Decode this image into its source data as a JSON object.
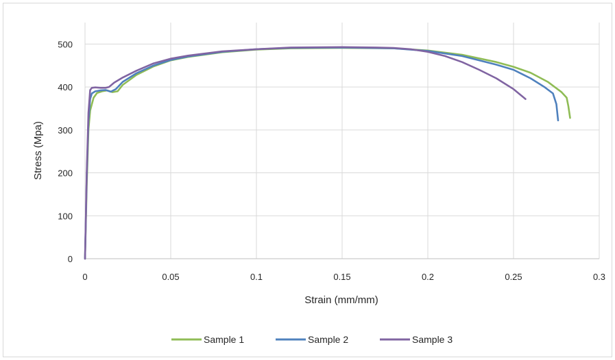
{
  "chart_data": {
    "type": "line",
    "title": "",
    "xlabel": "Strain (mm/mm)",
    "ylabel": "Stress (Mpa)",
    "xlim": [
      0,
      0.3
    ],
    "ylim": [
      0,
      550
    ],
    "x_ticks": [
      "0",
      "0.05",
      "0.1",
      "0.15",
      "0.2",
      "0.25",
      "0.3"
    ],
    "y_ticks": [
      "0",
      "100",
      "200",
      "300",
      "400",
      "500"
    ],
    "grid": "both",
    "legend_position": "bottom",
    "series": [
      {
        "name": "Sample 1",
        "color": "#8fbc55",
        "points": [
          [
            0,
            0
          ],
          [
            0.001,
            170
          ],
          [
            0.002,
            300
          ],
          [
            0.003,
            345
          ],
          [
            0.005,
            375
          ],
          [
            0.007,
            386
          ],
          [
            0.01,
            390
          ],
          [
            0.013,
            392
          ],
          [
            0.016,
            388
          ],
          [
            0.019,
            390
          ],
          [
            0.022,
            405
          ],
          [
            0.03,
            428
          ],
          [
            0.04,
            448
          ],
          [
            0.05,
            462
          ],
          [
            0.06,
            470
          ],
          [
            0.08,
            481
          ],
          [
            0.1,
            487
          ],
          [
            0.12,
            490
          ],
          [
            0.15,
            491
          ],
          [
            0.18,
            490
          ],
          [
            0.2,
            485
          ],
          [
            0.22,
            475
          ],
          [
            0.24,
            458
          ],
          [
            0.25,
            447
          ],
          [
            0.26,
            433
          ],
          [
            0.27,
            412
          ],
          [
            0.278,
            388
          ],
          [
            0.281,
            375
          ],
          [
            0.282,
            355
          ],
          [
            0.283,
            328
          ]
        ]
      },
      {
        "name": "Sample 2",
        "color": "#4f81bd",
        "points": [
          [
            0,
            0
          ],
          [
            0.001,
            190
          ],
          [
            0.002,
            320
          ],
          [
            0.003,
            372
          ],
          [
            0.004,
            385
          ],
          [
            0.006,
            390
          ],
          [
            0.009,
            392
          ],
          [
            0.012,
            393
          ],
          [
            0.015,
            389
          ],
          [
            0.018,
            395
          ],
          [
            0.022,
            412
          ],
          [
            0.03,
            432
          ],
          [
            0.04,
            450
          ],
          [
            0.05,
            463
          ],
          [
            0.06,
            471
          ],
          [
            0.08,
            482
          ],
          [
            0.1,
            488
          ],
          [
            0.12,
            491
          ],
          [
            0.15,
            492
          ],
          [
            0.18,
            490
          ],
          [
            0.2,
            484
          ],
          [
            0.22,
            472
          ],
          [
            0.24,
            452
          ],
          [
            0.25,
            440
          ],
          [
            0.26,
            420
          ],
          [
            0.268,
            400
          ],
          [
            0.273,
            385
          ],
          [
            0.275,
            360
          ],
          [
            0.276,
            322
          ]
        ]
      },
      {
        "name": "Sample 3",
        "color": "#8064a2",
        "points": [
          [
            0,
            0
          ],
          [
            0.001,
            200
          ],
          [
            0.002,
            340
          ],
          [
            0.003,
            393
          ],
          [
            0.004,
            398
          ],
          [
            0.006,
            399
          ],
          [
            0.009,
            398
          ],
          [
            0.012,
            398
          ],
          [
            0.014,
            400
          ],
          [
            0.017,
            410
          ],
          [
            0.022,
            422
          ],
          [
            0.03,
            438
          ],
          [
            0.04,
            455
          ],
          [
            0.05,
            466
          ],
          [
            0.06,
            473
          ],
          [
            0.08,
            483
          ],
          [
            0.1,
            488
          ],
          [
            0.12,
            492
          ],
          [
            0.15,
            493
          ],
          [
            0.17,
            492
          ],
          [
            0.18,
            491
          ],
          [
            0.19,
            488
          ],
          [
            0.2,
            482
          ],
          [
            0.21,
            472
          ],
          [
            0.22,
            458
          ],
          [
            0.23,
            440
          ],
          [
            0.24,
            420
          ],
          [
            0.25,
            395
          ],
          [
            0.257,
            372
          ]
        ]
      }
    ]
  }
}
